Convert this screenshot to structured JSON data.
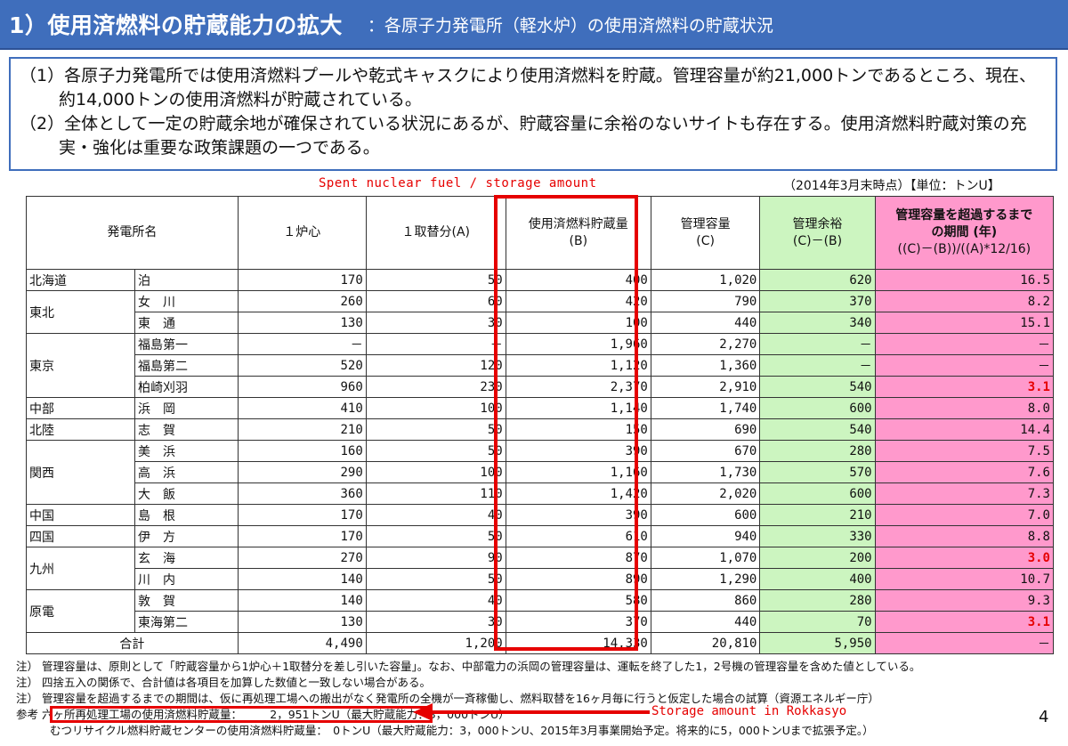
{
  "header": {
    "title": "1）使用済燃料の貯蔵能力の拡大",
    "subtitle": "：各原子力発電所（軽水炉）の使用済燃料の貯蔵状況"
  },
  "summary": {
    "item1": "（1）各原子力発電所では使用済燃料プールや乾式キャスクにより使用済燃料を貯蔵。管理容量が約21,000トンであるところ、現在、約14,000トンの使用済燃料が貯蔵されている。",
    "item2": "（2）全体として一定の貯蔵余地が確保されている状況にあるが、貯蔵容量に余裕のないサイトも存在する。使用済燃料貯蔵対策の充実・強化は重要な政策課題の一つである。"
  },
  "annotations": {
    "top": "Spent nuclear fuel / storage amount",
    "bottom": "Storage amount in Rokkasyo"
  },
  "as_of": "（2014年3月末時点）【単位：トンU】",
  "table": {
    "headers": {
      "plant": "発電所名",
      "core": "１炉心",
      "reload": "１取替分(A)",
      "stored": "使用済燃料貯蔵量",
      "stored_sub": "(B)",
      "capacity": "管理容量",
      "capacity_sub": "(C)",
      "margin": "管理余裕",
      "margin_sub": "(C)－(B)",
      "period_l1": "管理容量を超過するまで",
      "period_l2": "の期間 (年)",
      "period_l3": "((C)－(B))/((A)*12/16)"
    },
    "rows": [
      {
        "region": "北海道",
        "plant": "泊",
        "core": "170",
        "reload": "50",
        "stored": "400",
        "capacity": "1,020",
        "margin": "620",
        "period": "16.5"
      },
      {
        "region": "東北",
        "plant": "女　川",
        "core": "260",
        "reload": "60",
        "stored": "420",
        "capacity": "790",
        "margin": "370",
        "period": "8.2"
      },
      {
        "region": "",
        "plant": "東　通",
        "core": "130",
        "reload": "30",
        "stored": "100",
        "capacity": "440",
        "margin": "340",
        "period": "15.1"
      },
      {
        "region": "東京",
        "plant": "福島第一",
        "core": "－",
        "reload": "－",
        "stored": "1,960",
        "capacity": "2,270",
        "margin": "－",
        "period": "－"
      },
      {
        "region": "",
        "plant": "福島第二",
        "core": "520",
        "reload": "120",
        "stored": "1,120",
        "capacity": "1,360",
        "margin": "－",
        "period": "－"
      },
      {
        "region": "",
        "plant": "柏崎刈羽",
        "core": "960",
        "reload": "230",
        "stored": "2,370",
        "capacity": "2,910",
        "margin": "540",
        "period": "3.1"
      },
      {
        "region": "中部",
        "plant": "浜　岡",
        "core": "410",
        "reload": "100",
        "stored": "1,140",
        "capacity": "1,740",
        "margin": "600",
        "period": "8.0"
      },
      {
        "region": "北陸",
        "plant": "志　賀",
        "core": "210",
        "reload": "50",
        "stored": "150",
        "capacity": "690",
        "margin": "540",
        "period": "14.4"
      },
      {
        "region": "関西",
        "plant": "美　浜",
        "core": "160",
        "reload": "50",
        "stored": "390",
        "capacity": "670",
        "margin": "280",
        "period": "7.5"
      },
      {
        "region": "",
        "plant": "高　浜",
        "core": "290",
        "reload": "100",
        "stored": "1,160",
        "capacity": "1,730",
        "margin": "570",
        "period": "7.6"
      },
      {
        "region": "",
        "plant": "大　飯",
        "core": "360",
        "reload": "110",
        "stored": "1,420",
        "capacity": "2,020",
        "margin": "600",
        "period": "7.3"
      },
      {
        "region": "中国",
        "plant": "島　根",
        "core": "170",
        "reload": "40",
        "stored": "390",
        "capacity": "600",
        "margin": "210",
        "period": "7.0"
      },
      {
        "region": "四国",
        "plant": "伊　方",
        "core": "170",
        "reload": "50",
        "stored": "610",
        "capacity": "940",
        "margin": "330",
        "period": "8.8"
      },
      {
        "region": "九州",
        "plant": "玄　海",
        "core": "270",
        "reload": "90",
        "stored": "870",
        "capacity": "1,070",
        "margin": "200",
        "period": "3.0"
      },
      {
        "region": "",
        "plant": "川　内",
        "core": "140",
        "reload": "50",
        "stored": "890",
        "capacity": "1,290",
        "margin": "400",
        "period": "10.7"
      },
      {
        "region": "原電",
        "plant": "敦　賀",
        "core": "140",
        "reload": "40",
        "stored": "580",
        "capacity": "860",
        "margin": "280",
        "period": "9.3"
      },
      {
        "region": "",
        "plant": "東海第二",
        "core": "130",
        "reload": "30",
        "stored": "370",
        "capacity": "440",
        "margin": "70",
        "period": "3.1"
      }
    ],
    "total": {
      "label": "合計",
      "core": "4,490",
      "reload": "1,200",
      "stored": "14,330",
      "capacity": "20,810",
      "margin": "5,950",
      "period": "－"
    }
  },
  "notes": {
    "n1_label": "注）",
    "n1": "管理容量は、原則として「貯蔵容量から1炉心＋1取替分を差し引いた容量」。なお、中部電力の浜岡の管理容量は、運転を終了した1，2号機の管理容量を含めた値としている。",
    "n2_label": "注）",
    "n2": "四捨五入の関係で、合計値は各項目を加算した数値と一致しない場合がある。",
    "n3_label": "注）",
    "n3": "管理容量を超過するまでの期間は、仮に再処理工場への搬出がなく発電所の全機が一斉稼働し、燃料取替を16ヶ月毎に行うと仮定した場合の試算（資源エネルギー庁）",
    "ref_label": "参考",
    "ref1": "六ヶ所再処理工場の使用済燃料貯蔵量：　　　2，951トンU（最大貯蔵能力：3，000トンU）",
    "ref2": "むつリサイクル燃料貯蔵センターの使用済燃料貯蔵量：　0トンU（最大貯蔵能力：3，000トンU、2015年3月事業開始予定。将来的に5，000トンUまで拡張予定。）"
  },
  "page_number": "4",
  "colors": {
    "header_bg": "#3f6ebc",
    "margin_col": "#ccf5c0",
    "period_col": "#ff99cc",
    "annotation_red": "#e60000"
  }
}
